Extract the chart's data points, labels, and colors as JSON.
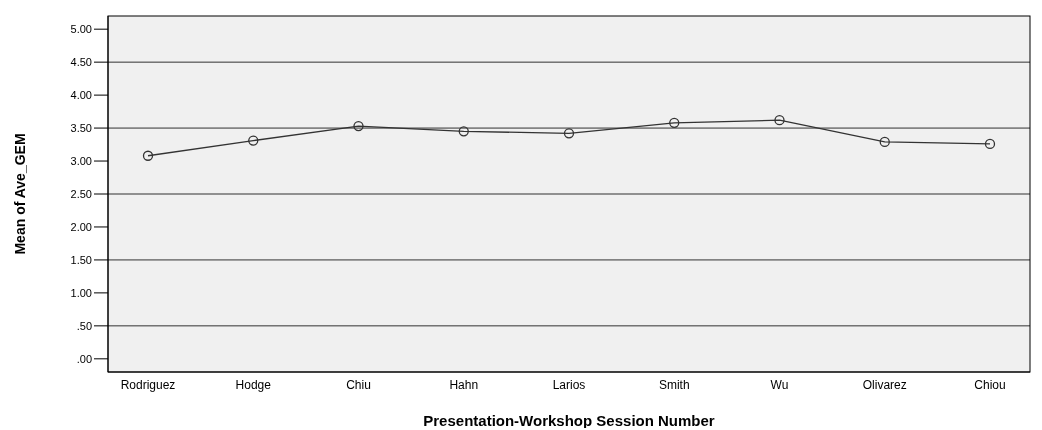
{
  "chart_data": {
    "type": "line",
    "xlabel": "Presentation-Workshop Session Number",
    "ylabel": "Mean of Ave_GEM",
    "categories": [
      "Rodriguez",
      "Hodge",
      "Chiu",
      "Hahn",
      "Larios",
      "Smith",
      "Wu",
      "Olivarez",
      "Chiou"
    ],
    "series": [
      {
        "color": "#333333",
        "values": [
          3.08,
          3.31,
          3.53,
          3.45,
          3.42,
          3.58,
          3.62,
          3.29,
          3.26
        ]
      }
    ],
    "ylim": [
      -0.2,
      5.2
    ],
    "yticks": [
      {
        "value": 0,
        "label": ".00"
      },
      {
        "value": 0.5,
        "label": ".50"
      },
      {
        "value": 1,
        "label": "1.00"
      },
      {
        "value": 1.5,
        "label": "1.50"
      },
      {
        "value": 2,
        "label": "2.00"
      },
      {
        "value": 2.5,
        "label": "2.50"
      },
      {
        "value": 3,
        "label": "3.00"
      },
      {
        "value": 3.5,
        "label": "3.50"
      },
      {
        "value": 4,
        "label": "4.00"
      },
      {
        "value": 4.5,
        "label": "4.50"
      },
      {
        "value": 5,
        "label": "5.00"
      }
    ],
    "grid": "y",
    "marker": "circle",
    "line_style": "solid",
    "legend": false
  }
}
